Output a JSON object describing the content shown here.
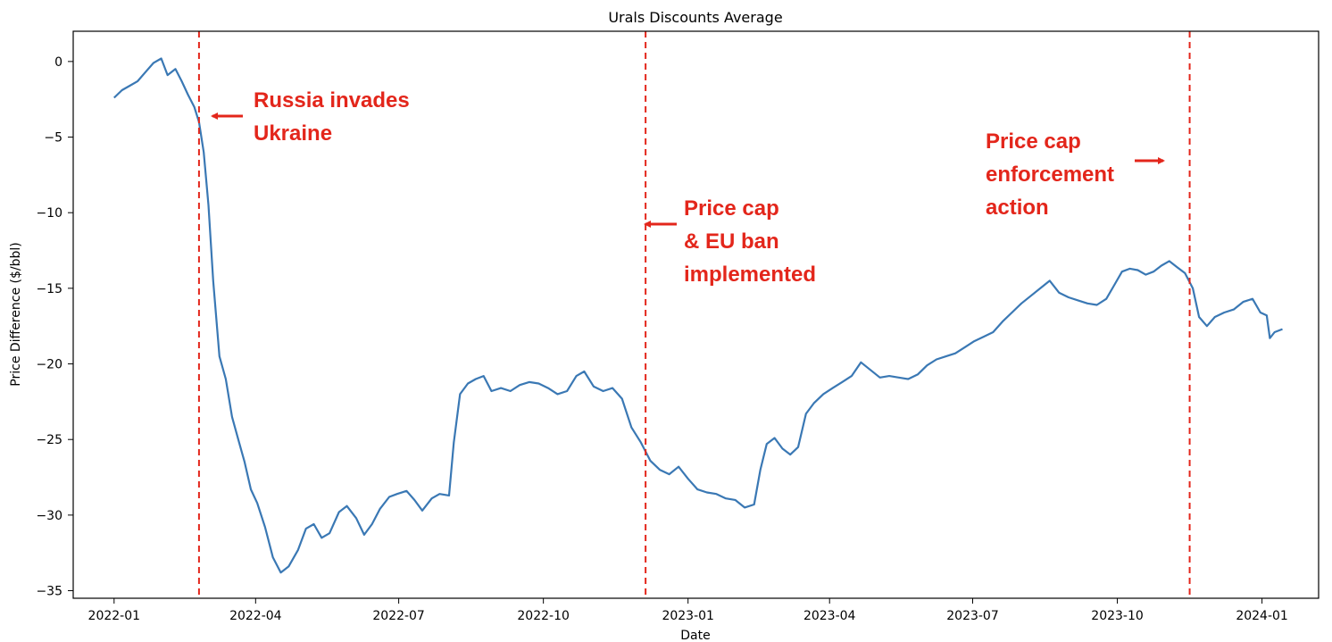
{
  "chart_data": {
    "type": "line",
    "title": "Urals Discounts Average",
    "xlabel": "Date",
    "ylabel": "Price Difference ($/bbl)",
    "xlim": [
      "2021-12-06",
      "2024-02-06"
    ],
    "ylim": [
      -35.5,
      2
    ],
    "grid": false,
    "colors": {
      "line": "#3a78b4",
      "vline": "#e3261b",
      "annotation": "#e3261b"
    },
    "x_ticks": [
      "2022-01",
      "2022-04",
      "2022-07",
      "2022-10",
      "2023-01",
      "2023-04",
      "2023-07",
      "2023-10",
      "2024-01"
    ],
    "x_tick_dates": [
      "2022-01-01",
      "2022-04-01",
      "2022-07-01",
      "2022-10-01",
      "2023-01-01",
      "2023-04-01",
      "2023-07-01",
      "2023-10-01",
      "2024-01-01"
    ],
    "y_ticks": [
      0,
      -5,
      -10,
      -15,
      -20,
      -25,
      -30,
      -35
    ],
    "y_tick_labels": [
      "0",
      "−5",
      "−10",
      "−15",
      "−20",
      "−25",
      "−30",
      "−35"
    ],
    "series": [
      {
        "points": [
          [
            "2022-01-01",
            -2.4
          ],
          [
            "2022-01-06",
            -1.9
          ],
          [
            "2022-01-11",
            -1.6
          ],
          [
            "2022-01-16",
            -1.3
          ],
          [
            "2022-01-21",
            -0.7
          ],
          [
            "2022-01-26",
            -0.1
          ],
          [
            "2022-01-31",
            0.2
          ],
          [
            "2022-02-04",
            -0.9
          ],
          [
            "2022-02-09",
            -0.5
          ],
          [
            "2022-02-13",
            -1.3
          ],
          [
            "2022-02-17",
            -2.2
          ],
          [
            "2022-02-21",
            -3.0
          ],
          [
            "2022-02-24",
            -4.0
          ],
          [
            "2022-02-27",
            -6.0
          ],
          [
            "2022-03-02",
            -9.5
          ],
          [
            "2022-03-05",
            -14.5
          ],
          [
            "2022-03-09",
            -19.5
          ],
          [
            "2022-03-13",
            -21.0
          ],
          [
            "2022-03-17",
            -23.5
          ],
          [
            "2022-03-21",
            -25.0
          ],
          [
            "2022-03-25",
            -26.5
          ],
          [
            "2022-03-29",
            -28.3
          ],
          [
            "2022-04-02",
            -29.2
          ],
          [
            "2022-04-07",
            -30.8
          ],
          [
            "2022-04-12",
            -32.8
          ],
          [
            "2022-04-17",
            -33.8
          ],
          [
            "2022-04-22",
            -33.4
          ],
          [
            "2022-04-28",
            -32.3
          ],
          [
            "2022-05-03",
            -30.9
          ],
          [
            "2022-05-08",
            -30.6
          ],
          [
            "2022-05-13",
            -31.5
          ],
          [
            "2022-05-18",
            -31.2
          ],
          [
            "2022-05-24",
            -29.8
          ],
          [
            "2022-05-29",
            -29.4
          ],
          [
            "2022-06-04",
            -30.2
          ],
          [
            "2022-06-09",
            -31.3
          ],
          [
            "2022-06-14",
            -30.6
          ],
          [
            "2022-06-19",
            -29.6
          ],
          [
            "2022-06-25",
            -28.8
          ],
          [
            "2022-06-30",
            -28.6
          ],
          [
            "2022-07-06",
            -28.4
          ],
          [
            "2022-07-11",
            -29.0
          ],
          [
            "2022-07-16",
            -29.7
          ],
          [
            "2022-07-22",
            -28.9
          ],
          [
            "2022-07-27",
            -28.6
          ],
          [
            "2022-08-02",
            -28.7
          ],
          [
            "2022-08-05",
            -25.2
          ],
          [
            "2022-08-09",
            -22.0
          ],
          [
            "2022-08-14",
            -21.3
          ],
          [
            "2022-08-19",
            -21.0
          ],
          [
            "2022-08-24",
            -20.8
          ],
          [
            "2022-08-29",
            -21.8
          ],
          [
            "2022-09-04",
            -21.6
          ],
          [
            "2022-09-10",
            -21.8
          ],
          [
            "2022-09-16",
            -21.4
          ],
          [
            "2022-09-22",
            -21.2
          ],
          [
            "2022-09-28",
            -21.3
          ],
          [
            "2022-10-04",
            -21.6
          ],
          [
            "2022-10-10",
            -22.0
          ],
          [
            "2022-10-16",
            -21.8
          ],
          [
            "2022-10-22",
            -20.8
          ],
          [
            "2022-10-27",
            -20.5
          ],
          [
            "2022-11-02",
            -21.5
          ],
          [
            "2022-11-08",
            -21.8
          ],
          [
            "2022-11-14",
            -21.6
          ],
          [
            "2022-11-20",
            -22.3
          ],
          [
            "2022-11-26",
            -24.2
          ],
          [
            "2022-12-02",
            -25.2
          ],
          [
            "2022-12-08",
            -26.4
          ],
          [
            "2022-12-14",
            -27.0
          ],
          [
            "2022-12-20",
            -27.3
          ],
          [
            "2022-12-26",
            -26.8
          ],
          [
            "2023-01-01",
            -27.6
          ],
          [
            "2023-01-07",
            -28.3
          ],
          [
            "2023-01-13",
            -28.5
          ],
          [
            "2023-01-19",
            -28.6
          ],
          [
            "2023-01-25",
            -28.9
          ],
          [
            "2023-01-31",
            -29.0
          ],
          [
            "2023-02-06",
            -29.5
          ],
          [
            "2023-02-12",
            -29.3
          ],
          [
            "2023-02-16",
            -27.0
          ],
          [
            "2023-02-20",
            -25.3
          ],
          [
            "2023-02-25",
            -24.9
          ],
          [
            "2023-03-02",
            -25.6
          ],
          [
            "2023-03-07",
            -26.0
          ],
          [
            "2023-03-12",
            -25.5
          ],
          [
            "2023-03-17",
            -23.3
          ],
          [
            "2023-03-22",
            -22.6
          ],
          [
            "2023-03-28",
            -22.0
          ],
          [
            "2023-04-03",
            -21.6
          ],
          [
            "2023-04-09",
            -21.2
          ],
          [
            "2023-04-15",
            -20.8
          ],
          [
            "2023-04-21",
            -19.9
          ],
          [
            "2023-04-27",
            -20.4
          ],
          [
            "2023-05-03",
            -20.9
          ],
          [
            "2023-05-09",
            -20.8
          ],
          [
            "2023-05-15",
            -20.9
          ],
          [
            "2023-05-21",
            -21.0
          ],
          [
            "2023-05-27",
            -20.7
          ],
          [
            "2023-06-02",
            -20.1
          ],
          [
            "2023-06-08",
            -19.7
          ],
          [
            "2023-06-14",
            -19.5
          ],
          [
            "2023-06-20",
            -19.3
          ],
          [
            "2023-06-26",
            -18.9
          ],
          [
            "2023-07-02",
            -18.5
          ],
          [
            "2023-07-08",
            -18.2
          ],
          [
            "2023-07-14",
            -17.9
          ],
          [
            "2023-07-20",
            -17.2
          ],
          [
            "2023-07-26",
            -16.6
          ],
          [
            "2023-08-01",
            -16.0
          ],
          [
            "2023-08-07",
            -15.5
          ],
          [
            "2023-08-13",
            -15.0
          ],
          [
            "2023-08-19",
            -14.5
          ],
          [
            "2023-08-25",
            -15.3
          ],
          [
            "2023-08-31",
            -15.6
          ],
          [
            "2023-09-06",
            -15.8
          ],
          [
            "2023-09-12",
            -16.0
          ],
          [
            "2023-09-18",
            -16.1
          ],
          [
            "2023-09-24",
            -15.7
          ],
          [
            "2023-09-29",
            -14.8
          ],
          [
            "2023-10-04",
            -13.9
          ],
          [
            "2023-10-09",
            -13.7
          ],
          [
            "2023-10-14",
            -13.8
          ],
          [
            "2023-10-19",
            -14.1
          ],
          [
            "2023-10-24",
            -13.9
          ],
          [
            "2023-10-29",
            -13.5
          ],
          [
            "2023-11-03",
            -13.2
          ],
          [
            "2023-11-08",
            -13.6
          ],
          [
            "2023-11-13",
            -14.0
          ],
          [
            "2023-11-18",
            -15.0
          ],
          [
            "2023-11-22",
            -16.9
          ],
          [
            "2023-11-27",
            -17.5
          ],
          [
            "2023-12-02",
            -16.9
          ],
          [
            "2023-12-08",
            -16.6
          ],
          [
            "2023-12-14",
            -16.4
          ],
          [
            "2023-12-20",
            -15.9
          ],
          [
            "2023-12-26",
            -15.7
          ],
          [
            "2023-12-31",
            -16.6
          ],
          [
            "2024-01-04",
            -16.8
          ],
          [
            "2024-01-06",
            -18.3
          ],
          [
            "2024-01-09",
            -17.9
          ],
          [
            "2024-01-14",
            -17.7
          ]
        ]
      }
    ],
    "vlines": [
      "2022-02-24",
      "2022-12-05",
      "2023-11-16"
    ],
    "annotations": [
      {
        "lines": [
          "Russia invades",
          "Ukraine"
        ],
        "arrow": "left"
      },
      {
        "lines": [
          "Price cap",
          "& EU ban",
          "implemented"
        ],
        "arrow": "left"
      },
      {
        "lines": [
          "Price cap",
          "enforcement",
          "action"
        ],
        "arrow": "right"
      }
    ]
  }
}
